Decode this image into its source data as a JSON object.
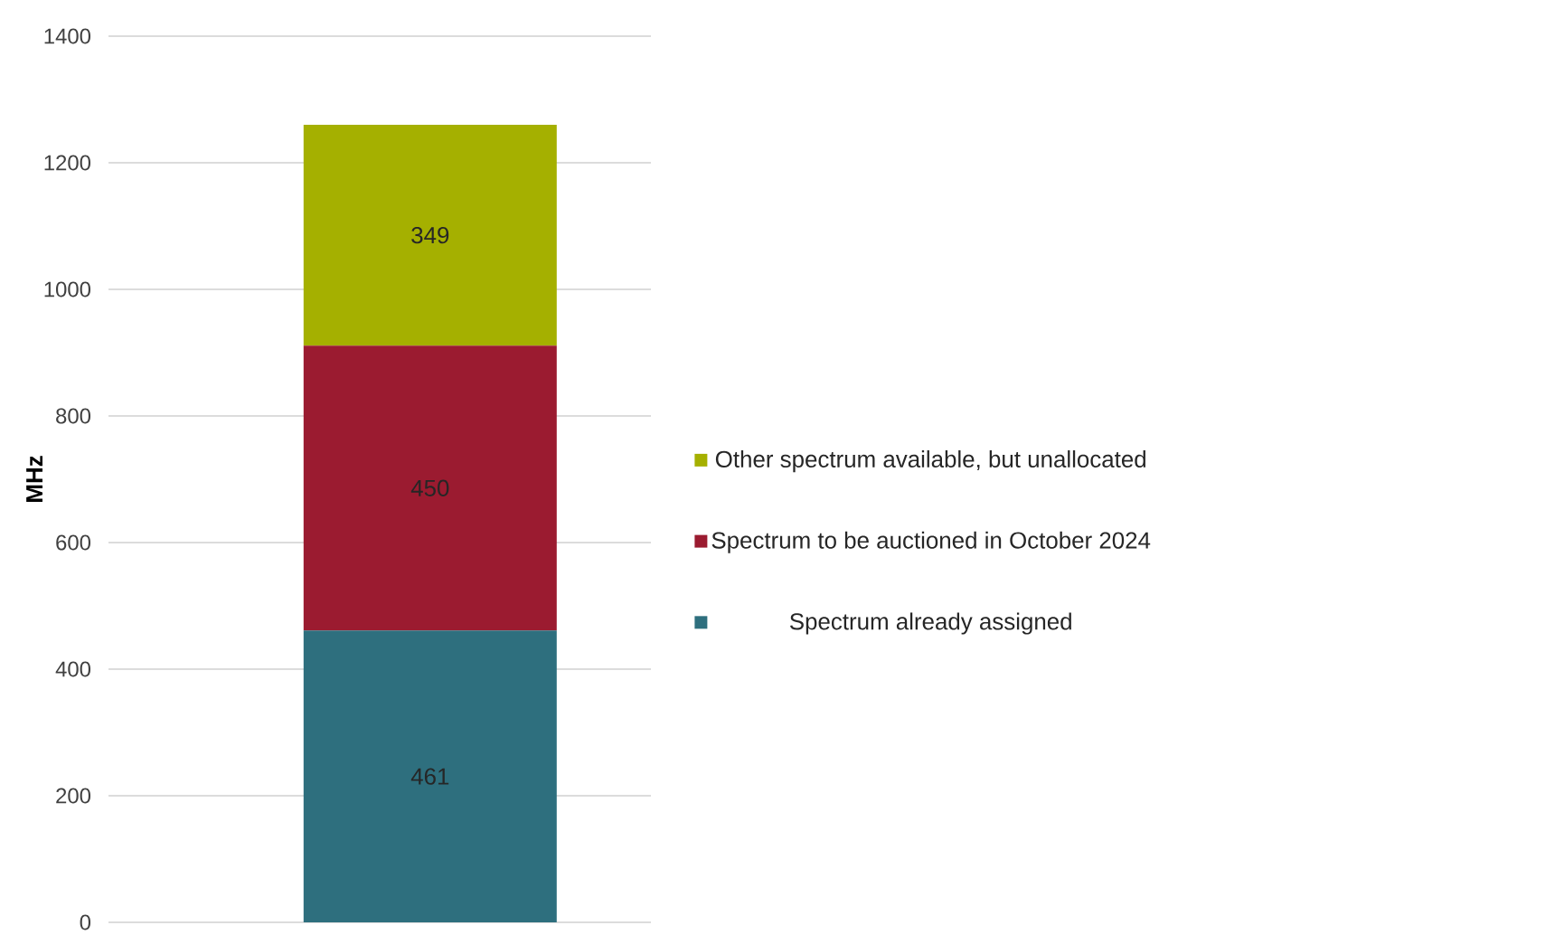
{
  "chart_data": {
    "type": "bar",
    "stacked": true,
    "categories": [
      null
    ],
    "ylabel": "MHz",
    "ylim": [
      0,
      1400
    ],
    "yticks": [
      0,
      200,
      400,
      600,
      800,
      1000,
      1200,
      1400
    ],
    "grid": "y",
    "legend": "right",
    "data_labels": true,
    "series": [
      {
        "name": "Spectrum already assigned",
        "color": "#2e6f7e",
        "values": [
          461
        ]
      },
      {
        "name": "Spectrum to be auctioned in October 2024",
        "color": "#9b1b30",
        "values": [
          450
        ]
      },
      {
        "name": "Other spectrum available, but unallocated",
        "color": "#a5b000",
        "values": [
          349
        ]
      }
    ]
  }
}
